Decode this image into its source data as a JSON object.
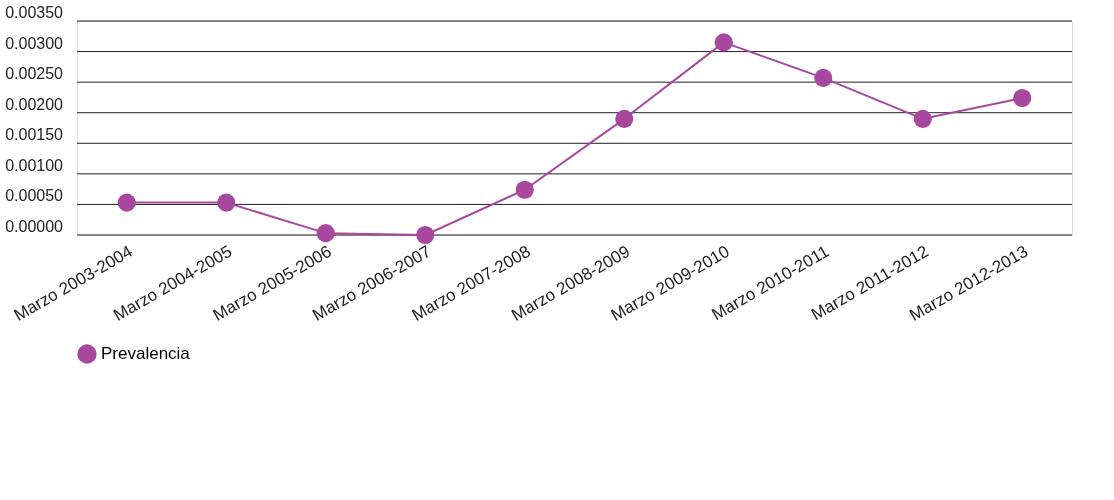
{
  "chart_data": {
    "type": "line",
    "categories": [
      "Marzo 2003-2004",
      "Marzo 2004-2005",
      "Marzo 2005-2006",
      "Marzo 2006-2007",
      "Marzo 2007-2008",
      "Marzo 2008-2009",
      "Marzo 2009-2010",
      "Marzo 2010-2011",
      "Marzo 2011-2012",
      "Marzo 2012-2013"
    ],
    "series": [
      {
        "name": "Prevalencia",
        "color": "#a8479e",
        "values": [
          0.00053,
          0.00053,
          3e-05,
          0.0,
          0.00074,
          0.0019,
          0.00315,
          0.00257,
          0.0019,
          0.00224
        ]
      }
    ],
    "ylim": [
      0,
      0.0035
    ],
    "yticks": [
      {
        "value": 0,
        "label": "0.00000"
      },
      {
        "value": 0.0005,
        "label": "0.00050"
      },
      {
        "value": 0.001,
        "label": "0.00100"
      },
      {
        "value": 0.0015,
        "label": "0.00150"
      },
      {
        "value": 0.002,
        "label": "0.00200"
      },
      {
        "value": 0.0025,
        "label": "0.00250"
      },
      {
        "value": 0.003,
        "label": "0.00300"
      },
      {
        "value": 0.0035,
        "label": "0.00350"
      }
    ],
    "grid": "y",
    "legend": "bottom",
    "marker": "circle",
    "line_style": "solid"
  }
}
